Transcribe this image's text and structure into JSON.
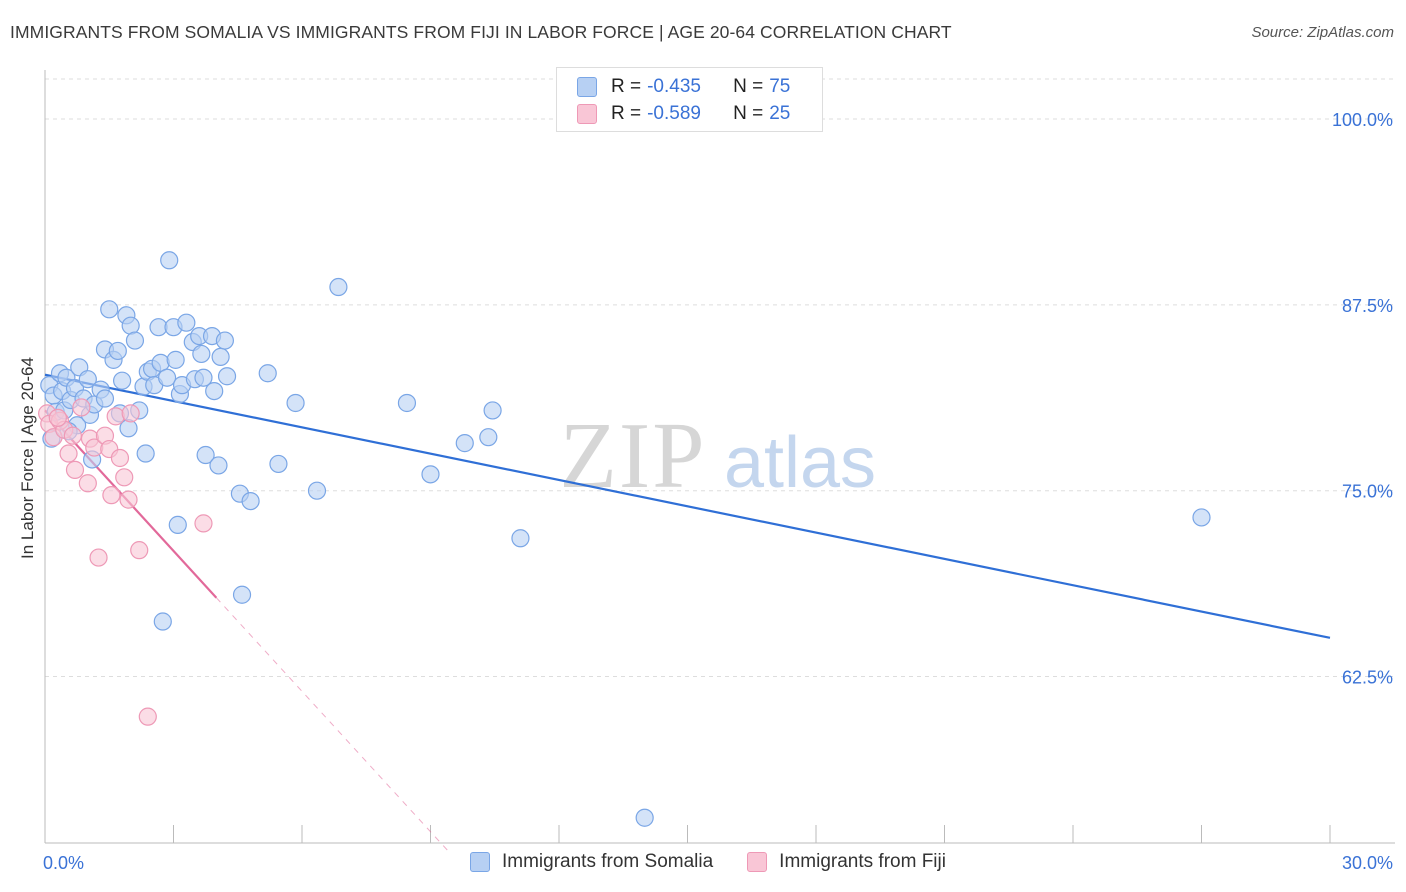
{
  "title": "IMMIGRANTS FROM SOMALIA VS IMMIGRANTS FROM FIJI IN LABOR FORCE | AGE 20-64 CORRELATION CHART",
  "source": "Source: ZipAtlas.com",
  "watermark": {
    "zip": "ZIP",
    "atlas": "atlas"
  },
  "colors": {
    "somalia_fill": "#b7d0f3",
    "somalia_stroke": "#7aa6e6",
    "somalia_line": "#2f6fd6",
    "fiji_fill": "#f9c6d6",
    "fiji_stroke": "#ee99b6",
    "fiji_line": "#e2699a",
    "axis_text": "#3a72d6",
    "grid": "#dddddd"
  },
  "legend_top": {
    "rows": [
      {
        "r_label": "R =",
        "r_value": "-0.435",
        "n_label": "N =",
        "n_value": "75"
      },
      {
        "r_label": "R =",
        "r_value": "-0.589",
        "n_label": "N =",
        "n_value": "25"
      }
    ]
  },
  "legend_bottom": {
    "somalia": "Immigrants from Somalia",
    "fiji": "Immigrants from Fiji"
  },
  "chart_data": {
    "type": "scatter",
    "ylabel": "In Labor Force | Age 20-64",
    "xlim": [
      0,
      30
    ],
    "ylim": [
      51.3,
      103.3
    ],
    "x_tick_labels": [
      "0.0%",
      "30.0%"
    ],
    "y_ticks": [
      62.5,
      75.0,
      87.5,
      100.0
    ],
    "y_tick_labels": [
      "62.5%",
      "75.0%",
      "87.5%",
      "100.0%"
    ],
    "grid": true,
    "series": [
      {
        "name": "Immigrants from Somalia",
        "trend": {
          "x": [
            0,
            30
          ],
          "y": [
            82.8,
            65.1
          ]
        },
        "points": [
          [
            0.1,
            82.1
          ],
          [
            0.2,
            81.4
          ],
          [
            0.25,
            80.3
          ],
          [
            0.35,
            82.9
          ],
          [
            0.4,
            81.7
          ],
          [
            0.45,
            80.4
          ],
          [
            0.5,
            82.6
          ],
          [
            0.6,
            81.1
          ],
          [
            0.7,
            81.9
          ],
          [
            0.75,
            79.4
          ],
          [
            0.8,
            83.3
          ],
          [
            0.9,
            81.2
          ],
          [
            1.0,
            82.5
          ],
          [
            1.05,
            80.1
          ],
          [
            1.1,
            77.1
          ],
          [
            1.15,
            80.8
          ],
          [
            1.3,
            81.8
          ],
          [
            1.4,
            81.2
          ],
          [
            1.4,
            84.5
          ],
          [
            1.5,
            87.2
          ],
          [
            1.6,
            83.8
          ],
          [
            1.7,
            84.4
          ],
          [
            1.75,
            80.2
          ],
          [
            1.8,
            82.4
          ],
          [
            1.9,
            86.8
          ],
          [
            1.95,
            79.2
          ],
          [
            2.0,
            86.1
          ],
          [
            2.1,
            85.1
          ],
          [
            2.2,
            80.4
          ],
          [
            2.3,
            82.0
          ],
          [
            2.35,
            77.5
          ],
          [
            2.4,
            83.0
          ],
          [
            2.5,
            83.2
          ],
          [
            2.55,
            82.1
          ],
          [
            2.65,
            86.0
          ],
          [
            2.7,
            83.6
          ],
          [
            2.85,
            82.6
          ],
          [
            2.9,
            90.5
          ],
          [
            3.0,
            86.0
          ],
          [
            3.05,
            83.8
          ],
          [
            3.1,
            72.7
          ],
          [
            3.15,
            81.5
          ],
          [
            3.2,
            82.1
          ],
          [
            3.3,
            86.3
          ],
          [
            3.45,
            85.0
          ],
          [
            3.5,
            82.5
          ],
          [
            3.6,
            85.4
          ],
          [
            3.65,
            84.2
          ],
          [
            3.7,
            82.6
          ],
          [
            3.75,
            77.4
          ],
          [
            3.9,
            85.4
          ],
          [
            3.95,
            81.7
          ],
          [
            4.05,
            76.7
          ],
          [
            4.1,
            84.0
          ],
          [
            4.2,
            85.1
          ],
          [
            4.25,
            82.7
          ],
          [
            4.55,
            74.8
          ],
          [
            4.6,
            68.0
          ],
          [
            4.8,
            74.3
          ],
          [
            5.2,
            82.9
          ],
          [
            5.45,
            76.8
          ],
          [
            5.85,
            80.9
          ],
          [
            6.35,
            75.0
          ],
          [
            6.85,
            88.7
          ],
          [
            8.45,
            80.9
          ],
          [
            9.0,
            76.1
          ],
          [
            9.8,
            78.2
          ],
          [
            10.35,
            78.6
          ],
          [
            10.45,
            80.4
          ],
          [
            11.1,
            71.8
          ],
          [
            2.75,
            66.2
          ],
          [
            14.0,
            53.0
          ],
          [
            27.0,
            73.2
          ],
          [
            0.15,
            78.5
          ],
          [
            0.55,
            79.0
          ]
        ]
      },
      {
        "name": "Immigrants from Fiji",
        "trend": {
          "x": [
            0,
            4.0
          ],
          "y": [
            80.4,
            67.8
          ],
          "dash_x": [
            4.0,
            9.4
          ],
          "dash_y": [
            67.8,
            50.8
          ]
        },
        "points": [
          [
            0.05,
            80.2
          ],
          [
            0.1,
            79.5
          ],
          [
            0.2,
            78.6
          ],
          [
            0.35,
            79.7
          ],
          [
            0.45,
            79.1
          ],
          [
            0.55,
            77.5
          ],
          [
            0.65,
            78.7
          ],
          [
            0.7,
            76.4
          ],
          [
            0.85,
            80.6
          ],
          [
            1.0,
            75.5
          ],
          [
            1.05,
            78.5
          ],
          [
            1.15,
            77.9
          ],
          [
            1.25,
            70.5
          ],
          [
            1.4,
            78.7
          ],
          [
            1.5,
            77.8
          ],
          [
            1.55,
            74.7
          ],
          [
            1.65,
            80.0
          ],
          [
            1.75,
            77.2
          ],
          [
            1.85,
            75.9
          ],
          [
            1.95,
            74.4
          ],
          [
            2.0,
            80.2
          ],
          [
            2.2,
            71.0
          ],
          [
            2.4,
            59.8
          ],
          [
            3.7,
            72.8
          ],
          [
            0.3,
            79.9
          ]
        ]
      }
    ]
  }
}
